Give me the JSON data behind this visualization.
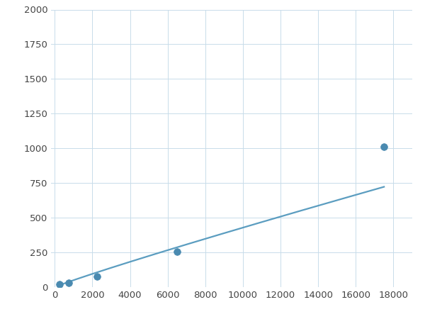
{
  "x": [
    250,
    750,
    2250,
    6500,
    17500
  ],
  "y": [
    20,
    30,
    75,
    255,
    1010
  ],
  "line_color": "#5b9dc0",
  "marker_color": "#4a8ab0",
  "marker_size": 7,
  "line_width": 1.6,
  "xlim": [
    -200,
    19000
  ],
  "ylim": [
    0,
    2000
  ],
  "xticks": [
    0,
    2000,
    4000,
    6000,
    8000,
    10000,
    12000,
    14000,
    16000,
    18000
  ],
  "yticks": [
    0,
    250,
    500,
    750,
    1000,
    1250,
    1500,
    1750,
    2000
  ],
  "grid_color": "#c8dcea",
  "background_color": "#ffffff",
  "figure_background": "#ffffff"
}
